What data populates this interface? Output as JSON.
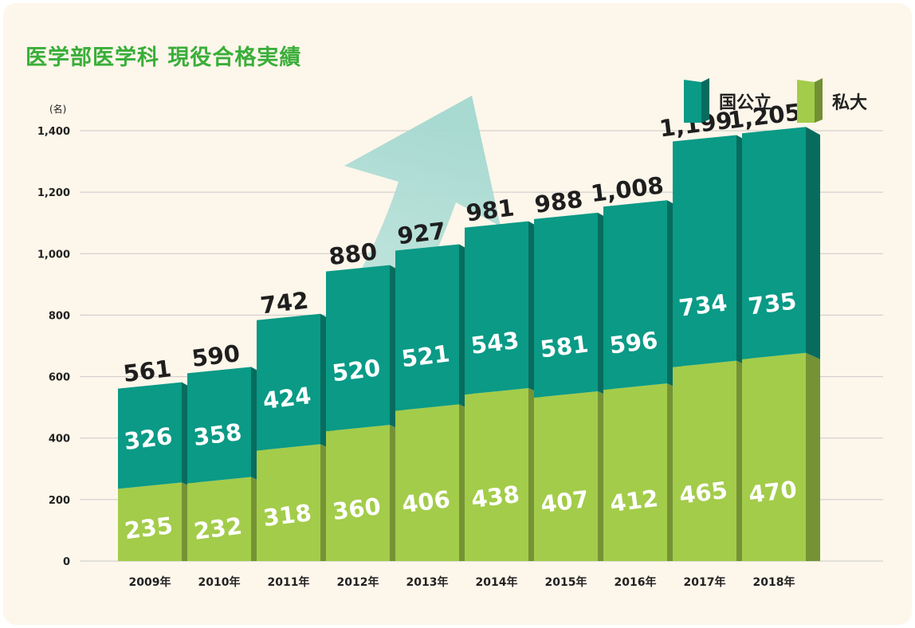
{
  "title": "医学部医学科 現役合格実績",
  "chart_data": {
    "type": "bar",
    "stacked": true,
    "title": "医学部医学科 現役合格実績",
    "ylabel": "(名)",
    "ylim": [
      0,
      1400
    ],
    "yticks": [
      0,
      200,
      400,
      600,
      800,
      1000,
      1200,
      1400
    ],
    "ytick_labels": [
      "0",
      "200",
      "400",
      "600",
      "800",
      "1,000",
      "1,200",
      "1,400"
    ],
    "categories": [
      "2009年",
      "2010年",
      "2011年",
      "2012年",
      "2013年",
      "2014年",
      "2015年",
      "2016年",
      "2017年",
      "2018年"
    ],
    "series": [
      {
        "name": "私大",
        "color": "#a3cc4a",
        "values": [
          235,
          232,
          318,
          360,
          406,
          438,
          407,
          412,
          465,
          470
        ]
      },
      {
        "name": "国公立",
        "color": "#0a9a86",
        "values": [
          326,
          358,
          424,
          520,
          521,
          543,
          581,
          596,
          734,
          735
        ]
      }
    ],
    "totals": [
      561,
      590,
      742,
      880,
      927,
      981,
      988,
      1008,
      1199,
      1205
    ],
    "total_labels": [
      "561",
      "590",
      "742",
      "880",
      "927",
      "981",
      "988",
      "1,008",
      "1,199",
      "1,205"
    ],
    "legend": "top-right",
    "grid": true
  }
}
